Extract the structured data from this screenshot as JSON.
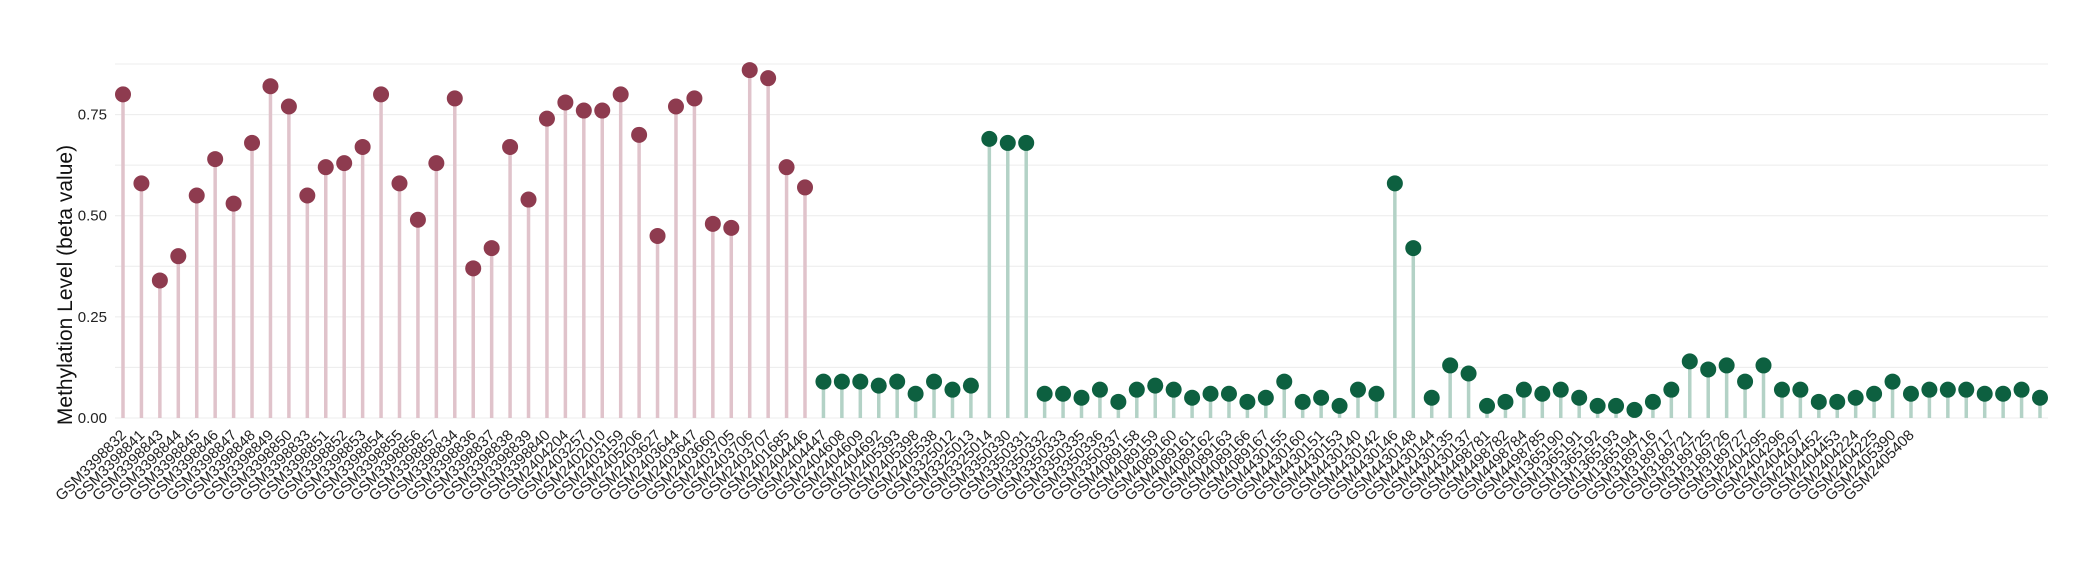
{
  "chart_data": {
    "type": "lollipop",
    "title": "",
    "xlabel": "",
    "ylabel": "Methylation Level (beta value)",
    "ylim": [
      0,
      0.88
    ],
    "yticks": [
      0.0,
      0.25,
      0.5,
      0.75
    ],
    "ytick_labels": [
      "0.00",
      "0.25",
      "0.50",
      "0.75"
    ],
    "grid": true,
    "legend": "none",
    "colors": {
      "group1": "#8e3b4f",
      "group1_stem": "#e0c3cb",
      "group2": "#0d6040",
      "group2_stem": "#b3d2c6"
    },
    "points": [
      {
        "label": "GSM3398832",
        "value": 0.8,
        "group": 1
      },
      {
        "label": "GSM3398841",
        "value": 0.58,
        "group": 1
      },
      {
        "label": "GSM3398843",
        "value": 0.34,
        "group": 1
      },
      {
        "label": "GSM3398844",
        "value": 0.4,
        "group": 1
      },
      {
        "label": "GSM3398845",
        "value": 0.55,
        "group": 1
      },
      {
        "label": "GSM3398846",
        "value": 0.64,
        "group": 1
      },
      {
        "label": "GSM3398847",
        "value": 0.53,
        "group": 1
      },
      {
        "label": "GSM3398848",
        "value": 0.68,
        "group": 1
      },
      {
        "label": "GSM3398849",
        "value": 0.82,
        "group": 1
      },
      {
        "label": "GSM3398850",
        "value": 0.77,
        "group": 1
      },
      {
        "label": "GSM3398833",
        "value": 0.55,
        "group": 1
      },
      {
        "label": "GSM3398851",
        "value": 0.62,
        "group": 1
      },
      {
        "label": "GSM3398852",
        "value": 0.63,
        "group": 1
      },
      {
        "label": "GSM3398853",
        "value": 0.67,
        "group": 1
      },
      {
        "label": "GSM3398854",
        "value": 0.8,
        "group": 1
      },
      {
        "label": "GSM3398855",
        "value": 0.58,
        "group": 1
      },
      {
        "label": "GSM3398856",
        "value": 0.49,
        "group": 1
      },
      {
        "label": "GSM3398857",
        "value": 0.63,
        "group": 1
      },
      {
        "label": "GSM3398834",
        "value": 0.79,
        "group": 1
      },
      {
        "label": "GSM3398836",
        "value": 0.37,
        "group": 1
      },
      {
        "label": "GSM3398837",
        "value": 0.42,
        "group": 1
      },
      {
        "label": "GSM3398838",
        "value": 0.67,
        "group": 1
      },
      {
        "label": "GSM3398839",
        "value": 0.54,
        "group": 1
      },
      {
        "label": "GSM3398840",
        "value": 0.74,
        "group": 1
      },
      {
        "label": "GSM2404204",
        "value": 0.78,
        "group": 1
      },
      {
        "label": "GSM2403257",
        "value": 0.76,
        "group": 1
      },
      {
        "label": "GSM2402010",
        "value": 0.76,
        "group": 1
      },
      {
        "label": "GSM2403159",
        "value": 0.8,
        "group": 1
      },
      {
        "label": "GSM2405206",
        "value": 0.7,
        "group": 1
      },
      {
        "label": "GSM2403627",
        "value": 0.45,
        "group": 1
      },
      {
        "label": "GSM2403644",
        "value": 0.77,
        "group": 1
      },
      {
        "label": "GSM2403647",
        "value": 0.79,
        "group": 1
      },
      {
        "label": "GSM2403660",
        "value": 0.48,
        "group": 1
      },
      {
        "label": "GSM2403705",
        "value": 0.47,
        "group": 1
      },
      {
        "label": "GSM2403706",
        "value": 0.86,
        "group": 1
      },
      {
        "label": "GSM2403707",
        "value": 0.84,
        "group": 1
      },
      {
        "label": "GSM2401685",
        "value": 0.62,
        "group": 1
      },
      {
        "label": "GSM2404446",
        "value": 0.57,
        "group": 1
      },
      {
        "label": "GSM2404447",
        "value": 0.09,
        "group": 2
      },
      {
        "label": "GSM2404608",
        "value": 0.09,
        "group": 2
      },
      {
        "label": "GSM2404609",
        "value": 0.09,
        "group": 2
      },
      {
        "label": "GSM2404692",
        "value": 0.08,
        "group": 2
      },
      {
        "label": "GSM2405393",
        "value": 0.09,
        "group": 2
      },
      {
        "label": "GSM2405398",
        "value": 0.06,
        "group": 2
      },
      {
        "label": "GSM2405538",
        "value": 0.09,
        "group": 2
      },
      {
        "label": "GSM3325012",
        "value": 0.07,
        "group": 2
      },
      {
        "label": "GSM3325013",
        "value": 0.08,
        "group": 2
      },
      {
        "label": "GSM3325014",
        "value": 0.69,
        "group": 2
      },
      {
        "label": "GSM3350330",
        "value": 0.68,
        "group": 2
      },
      {
        "label": "GSM3350331",
        "value": 0.68,
        "group": 2
      },
      {
        "label": "GSM3350332",
        "value": 0.06,
        "group": 2
      },
      {
        "label": "GSM3350333",
        "value": 0.06,
        "group": 2
      },
      {
        "label": "GSM3350335",
        "value": 0.05,
        "group": 2
      },
      {
        "label": "GSM3350336",
        "value": 0.07,
        "group": 2
      },
      {
        "label": "GSM3350337",
        "value": 0.04,
        "group": 2
      },
      {
        "label": "GSM4089158",
        "value": 0.07,
        "group": 2
      },
      {
        "label": "GSM4089159",
        "value": 0.08,
        "group": 2
      },
      {
        "label": "GSM4089160",
        "value": 0.07,
        "group": 2
      },
      {
        "label": "GSM4089161",
        "value": 0.05,
        "group": 2
      },
      {
        "label": "GSM4089162",
        "value": 0.06,
        "group": 2
      },
      {
        "label": "GSM4089163",
        "value": 0.06,
        "group": 2
      },
      {
        "label": "GSM4089166",
        "value": 0.04,
        "group": 2
      },
      {
        "label": "GSM4089167",
        "value": 0.05,
        "group": 2
      },
      {
        "label": "GSM4430155",
        "value": 0.09,
        "group": 2
      },
      {
        "label": "GSM4430160",
        "value": 0.04,
        "group": 2
      },
      {
        "label": "GSM4430151",
        "value": 0.05,
        "group": 2
      },
      {
        "label": "GSM4430153",
        "value": 0.03,
        "group": 2
      },
      {
        "label": "GSM4430140",
        "value": 0.07,
        "group": 2
      },
      {
        "label": "GSM4430142",
        "value": 0.06,
        "group": 2
      },
      {
        "label": "GSM4430146",
        "value": 0.58,
        "group": 2
      },
      {
        "label": "GSM4430148",
        "value": 0.42,
        "group": 2
      },
      {
        "label": "GSM4430144",
        "value": 0.05,
        "group": 2
      },
      {
        "label": "GSM4430135",
        "value": 0.13,
        "group": 2
      },
      {
        "label": "GSM4430137",
        "value": 0.11,
        "group": 2
      },
      {
        "label": "GSM4498781",
        "value": 0.03,
        "group": 2
      },
      {
        "label": "GSM4498782",
        "value": 0.04,
        "group": 2
      },
      {
        "label": "GSM4498784",
        "value": 0.07,
        "group": 2
      },
      {
        "label": "GSM4498785",
        "value": 0.06,
        "group": 2
      },
      {
        "label": "GSM1365190",
        "value": 0.07,
        "group": 2
      },
      {
        "label": "GSM1365191",
        "value": 0.05,
        "group": 2
      },
      {
        "label": "GSM1365192",
        "value": 0.03,
        "group": 2
      },
      {
        "label": "GSM1365193",
        "value": 0.03,
        "group": 2
      },
      {
        "label": "GSM1365194",
        "value": 0.02,
        "group": 2
      },
      {
        "label": "GSM3189716",
        "value": 0.04,
        "group": 2
      },
      {
        "label": "GSM3189717",
        "value": 0.07,
        "group": 2
      },
      {
        "label": "GSM3189721",
        "value": 0.14,
        "group": 2
      },
      {
        "label": "GSM3189725",
        "value": 0.12,
        "group": 2
      },
      {
        "label": "GSM3189726",
        "value": 0.13,
        "group": 2
      },
      {
        "label": "GSM3189727",
        "value": 0.09,
        "group": 2
      },
      {
        "label": "GSM2404295",
        "value": 0.13,
        "group": 2
      },
      {
        "label": "GSM2404296",
        "value": 0.07,
        "group": 2
      },
      {
        "label": "GSM2404297",
        "value": 0.07,
        "group": 2
      },
      {
        "label": "GSM2404452",
        "value": 0.04,
        "group": 2
      },
      {
        "label": "GSM2404453",
        "value": 0.04,
        "group": 2
      },
      {
        "label": "GSM2404224",
        "value": 0.05,
        "group": 2
      },
      {
        "label": "GSM2404225",
        "value": 0.06,
        "group": 2
      },
      {
        "label": "GSM2405390",
        "value": 0.09,
        "group": 2
      },
      {
        "label": "GSM2405408",
        "value": 0.06,
        "group": 2
      },
      {
        "label": "",
        "value": 0.07,
        "group": 2
      },
      {
        "label": "",
        "value": 0.07,
        "group": 2
      },
      {
        "label": "",
        "value": 0.07,
        "group": 2
      },
      {
        "label": "",
        "value": 0.06,
        "group": 2
      },
      {
        "label": "",
        "value": 0.06,
        "group": 2
      },
      {
        "label": "",
        "value": 0.07,
        "group": 2
      },
      {
        "label": "",
        "value": 0.05,
        "group": 2
      }
    ]
  }
}
